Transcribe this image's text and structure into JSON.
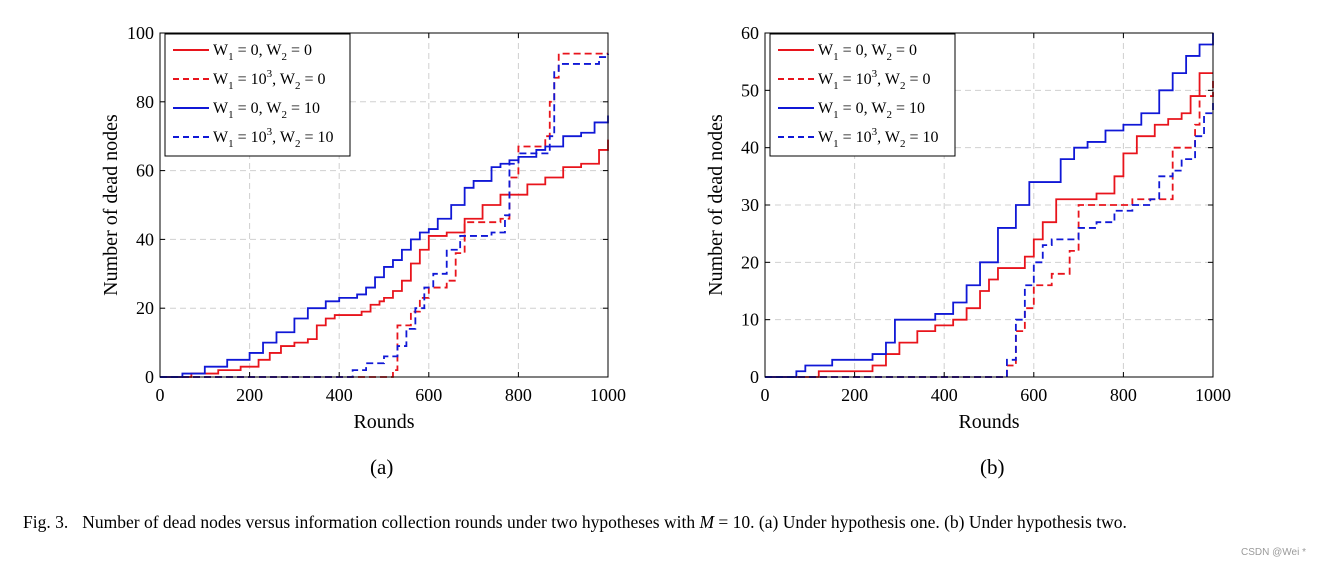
{
  "chart_data": [
    {
      "type": "line",
      "id": "a",
      "sublabel": "(a)",
      "xlabel": "Rounds",
      "ylabel": "Number of dead nodes",
      "xlim": [
        0,
        1000
      ],
      "ylim": [
        0,
        100
      ],
      "xticks": [
        0,
        200,
        400,
        600,
        800,
        1000
      ],
      "yticks": [
        0,
        20,
        40,
        60,
        80,
        100
      ],
      "grid": true,
      "legend_position": "top-left",
      "series": [
        {
          "name": "W1=0, W2=0",
          "color": "#e8141c",
          "style": "solid",
          "x": [
            0,
            70,
            130,
            180,
            220,
            245,
            270,
            300,
            330,
            350,
            370,
            390,
            420,
            450,
            470,
            490,
            500,
            520,
            540,
            560,
            580,
            600,
            640,
            680,
            720,
            760,
            800,
            820,
            860,
            900,
            940,
            980,
            1000
          ],
          "y": [
            0,
            1,
            2,
            3,
            5,
            7,
            9,
            10,
            11,
            15,
            17,
            18,
            18,
            19,
            21,
            22,
            23,
            25,
            28,
            33,
            37,
            41,
            42,
            46,
            50,
            53,
            53,
            56,
            58,
            61,
            62,
            66,
            69
          ]
        },
        {
          "name": "W1=10^3, W2=0",
          "color": "#e8141c",
          "style": "dashed",
          "x": [
            0,
            460,
            520,
            530,
            560,
            580,
            600,
            640,
            660,
            680,
            700,
            760,
            780,
            800,
            840,
            860,
            870,
            880,
            890,
            1000
          ],
          "y": [
            0,
            0,
            2,
            15,
            19,
            23,
            26,
            28,
            36,
            45,
            45,
            46,
            58,
            67,
            67,
            70,
            80,
            87,
            94,
            94
          ]
        },
        {
          "name": "W1=0, W2=10",
          "color": "#1018d6",
          "style": "solid",
          "x": [
            0,
            50,
            100,
            150,
            200,
            230,
            260,
            300,
            330,
            370,
            400,
            440,
            460,
            480,
            500,
            520,
            540,
            560,
            580,
            600,
            620,
            650,
            680,
            700,
            740,
            760,
            780,
            800,
            840,
            860,
            900,
            940,
            970,
            1000
          ],
          "y": [
            0,
            1,
            3,
            5,
            7,
            10,
            13,
            17,
            20,
            22,
            23,
            24,
            26,
            29,
            32,
            34,
            37,
            40,
            42,
            43,
            46,
            50,
            55,
            57,
            61,
            62,
            63,
            64,
            66,
            67,
            70,
            71,
            74,
            76
          ]
        },
        {
          "name": "W1=10^3, W2=10",
          "color": "#1018d6",
          "style": "dashed",
          "x": [
            0,
            400,
            430,
            460,
            500,
            530,
            550,
            570,
            590,
            610,
            640,
            670,
            700,
            740,
            770,
            780,
            800,
            840,
            870,
            880,
            890,
            950,
            980,
            1000
          ],
          "y": [
            0,
            0,
            2,
            4,
            6,
            9,
            14,
            20,
            26,
            30,
            37,
            41,
            41,
            42,
            47,
            62,
            65,
            65,
            70,
            89,
            91,
            91,
            93,
            94
          ]
        }
      ]
    },
    {
      "type": "line",
      "id": "b",
      "sublabel": "(b)",
      "xlabel": "Rounds",
      "ylabel": "Number of dead nodes",
      "xlim": [
        0,
        1000
      ],
      "ylim": [
        0,
        60
      ],
      "xticks": [
        0,
        200,
        400,
        600,
        800,
        1000
      ],
      "yticks": [
        0,
        10,
        20,
        30,
        40,
        50,
        60
      ],
      "grid": true,
      "legend_position": "top-left",
      "series": [
        {
          "name": "W1=0, W2=0",
          "color": "#e8141c",
          "style": "solid",
          "x": [
            0,
            120,
            200,
            240,
            270,
            300,
            340,
            380,
            420,
            450,
            480,
            500,
            520,
            560,
            580,
            600,
            620,
            650,
            720,
            740,
            780,
            800,
            830,
            870,
            900,
            930,
            950,
            970,
            1000
          ],
          "y": [
            0,
            1,
            1,
            2,
            4,
            6,
            8,
            9,
            10,
            12,
            15,
            17,
            19,
            19,
            21,
            24,
            27,
            31,
            31,
            32,
            35,
            39,
            42,
            44,
            45,
            46,
            49,
            53,
            53
          ]
        },
        {
          "name": "W1=10^3, W2=0",
          "color": "#e8141c",
          "style": "dashed",
          "x": [
            0,
            510,
            540,
            560,
            580,
            600,
            640,
            680,
            700,
            780,
            820,
            880,
            910,
            940,
            960,
            970,
            1000
          ],
          "y": [
            0,
            0,
            2,
            8,
            12,
            16,
            18,
            22,
            30,
            30,
            31,
            31,
            40,
            40,
            44,
            49,
            52
          ]
        },
        {
          "name": "W1=0, W2=10",
          "color": "#1018d6",
          "style": "solid",
          "x": [
            0,
            70,
            90,
            150,
            200,
            240,
            270,
            290,
            340,
            380,
            420,
            450,
            480,
            520,
            560,
            590,
            620,
            660,
            690,
            720,
            760,
            800,
            840,
            880,
            910,
            940,
            970,
            1000
          ],
          "y": [
            0,
            1,
            2,
            3,
            3,
            4,
            6,
            10,
            10,
            11,
            13,
            16,
            20,
            26,
            30,
            34,
            34,
            38,
            40,
            41,
            43,
            44,
            46,
            50,
            53,
            56,
            58,
            60
          ]
        },
        {
          "name": "W1=10^3, W2=10",
          "color": "#1018d6",
          "style": "dashed",
          "x": [
            0,
            520,
            540,
            560,
            580,
            600,
            620,
            640,
            670,
            700,
            740,
            780,
            820,
            860,
            880,
            910,
            930,
            960,
            980,
            1000
          ],
          "y": [
            0,
            0,
            3,
            10,
            16,
            20,
            23,
            24,
            24,
            26,
            27,
            29,
            30,
            31,
            35,
            36,
            38,
            42,
            46,
            48
          ]
        }
      ]
    }
  ],
  "caption": {
    "label": "Fig. 3.",
    "text_before": "Number of dead nodes versus information collection rounds under two hypotheses with ",
    "math_var": "M",
    "math_rest": " = 10",
    "text_after": ". (a) Under hypothesis one. (b) Under hypothesis two."
  },
  "watermark": "CSDN @Wei *"
}
